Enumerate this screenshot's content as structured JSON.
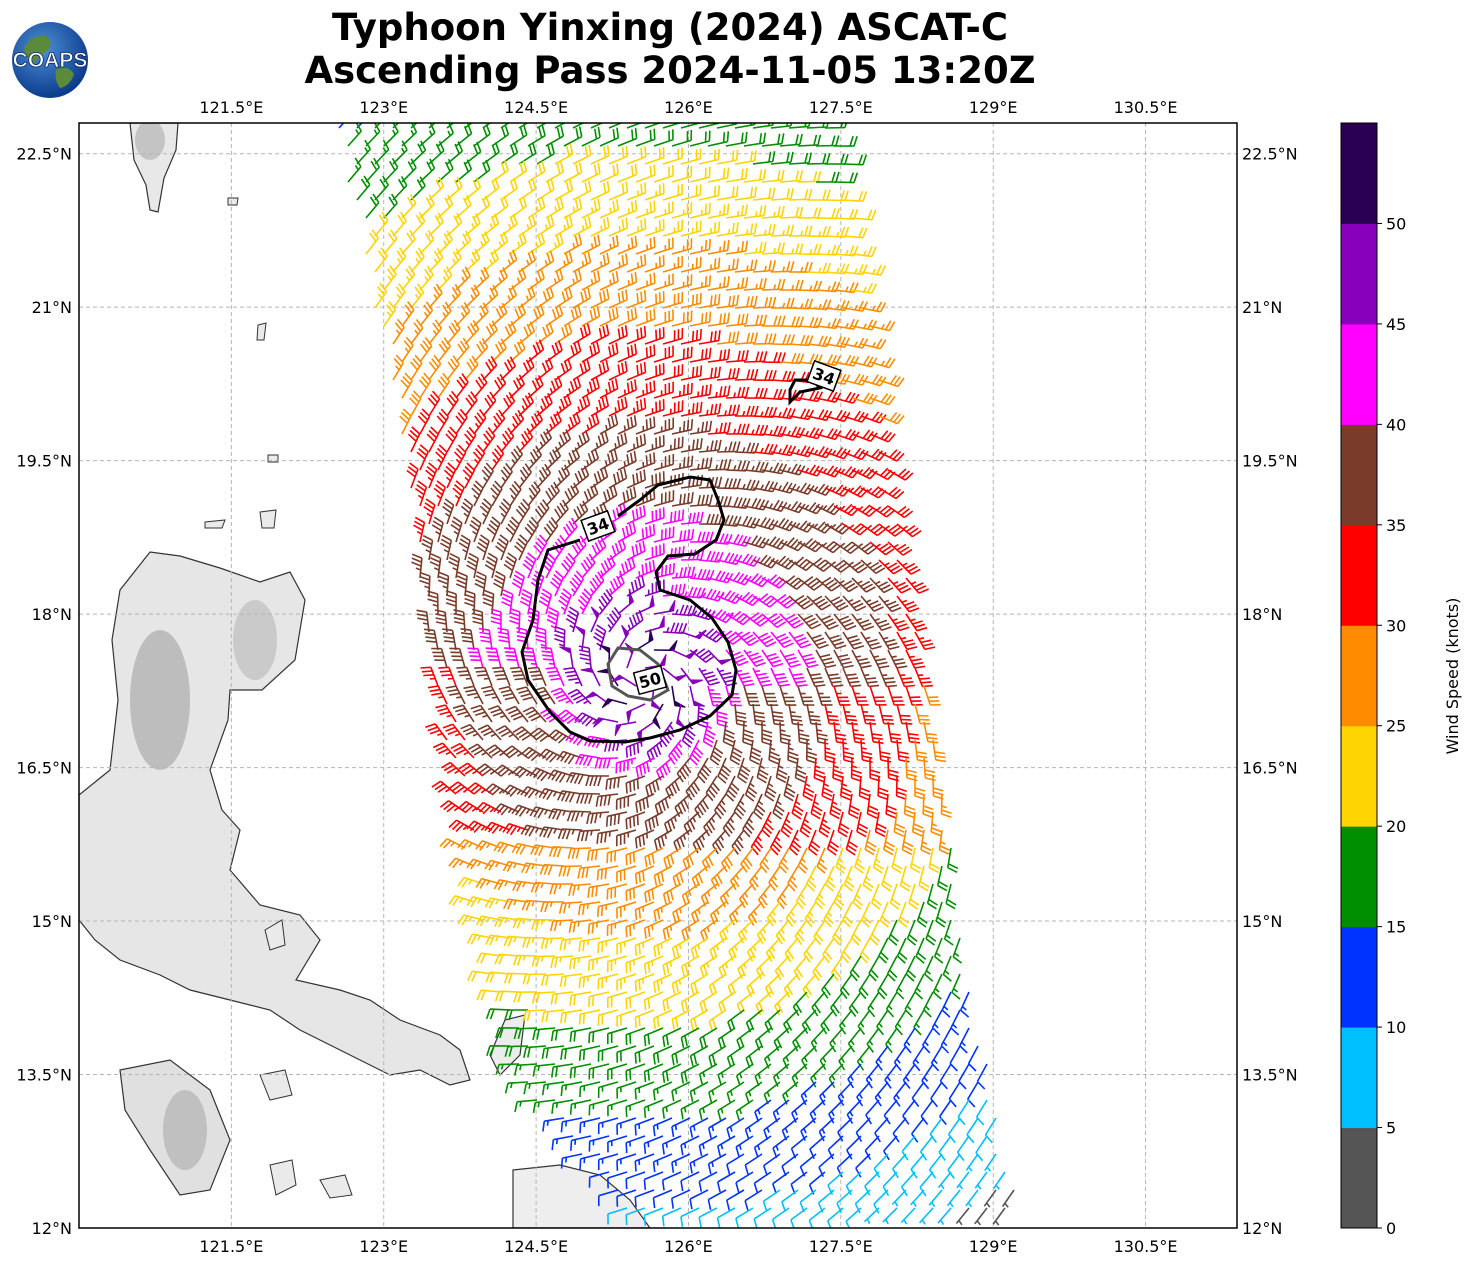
{
  "title": {
    "line1": "Typhoon Yinxing (2024) ASCAT-C",
    "line2": "Ascending Pass 2024-11-05 13:20Z"
  },
  "logo": {
    "text": "COAPS",
    "icon": "globe-logo-icon"
  },
  "map": {
    "lon_range": [
      120,
      131.4
    ],
    "lat_range": [
      12,
      22.8
    ],
    "lon_ticks": [
      "121.5°E",
      "123°E",
      "124.5°E",
      "126°E",
      "127.5°E",
      "129°E",
      "130.5°E"
    ],
    "lat_ticks": [
      "22.5°N",
      "21°N",
      "19.5°N",
      "18°N",
      "16.5°N",
      "15°N",
      "13.5°N",
      "12°N"
    ],
    "gridlines": true,
    "contour_labels": [
      "34",
      "34",
      "50"
    ]
  },
  "colorbar": {
    "label": "Wind Speed (knots)",
    "ticks": [
      "0",
      "5",
      "10",
      "15",
      "20",
      "25",
      "30",
      "35",
      "40",
      "45",
      "50"
    ],
    "colors": [
      "#555555",
      "#00bfff",
      "#0033ff",
      "#008f00",
      "#ffd400",
      "#ff8c00",
      "#ff0000",
      "#7a3b2a",
      "#ff00ff",
      "#8800bb",
      "#2a0055"
    ]
  },
  "storm": {
    "center_lon": 125.55,
    "center_lat": 17.35
  }
}
